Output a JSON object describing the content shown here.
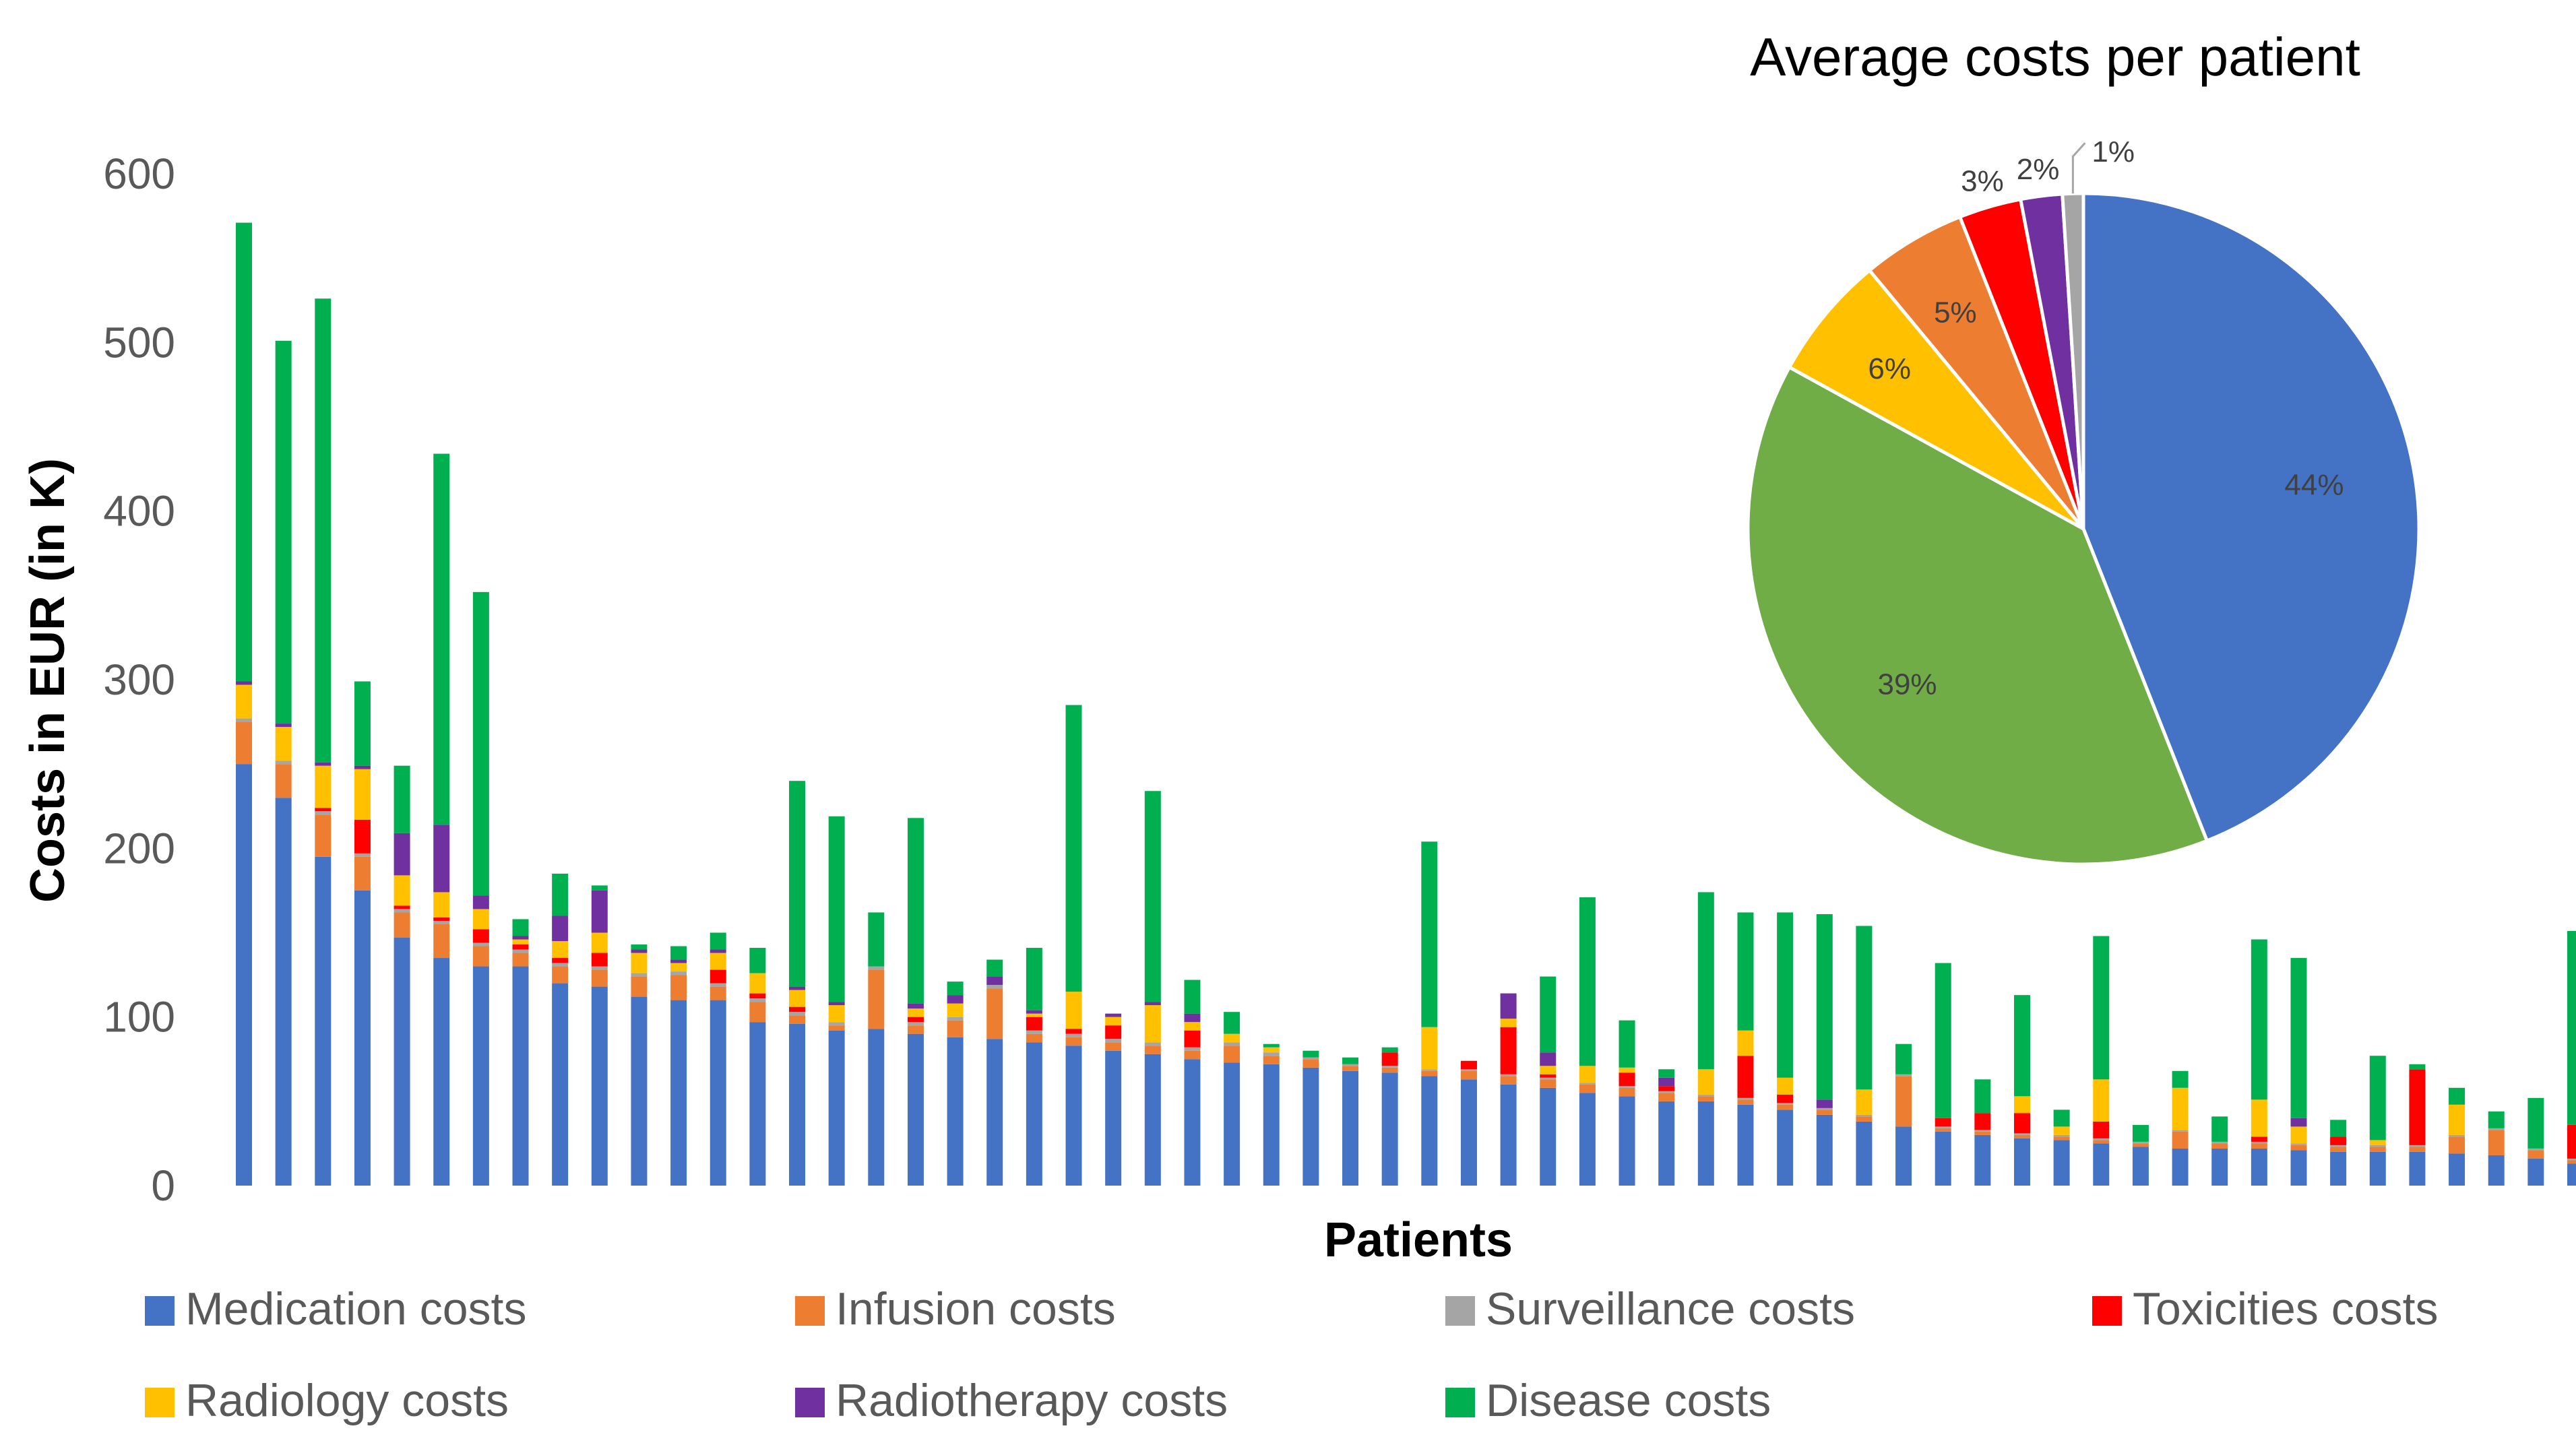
{
  "chart_data": [
    {
      "type": "bar",
      "stacked": true,
      "ylabel": "Costs in EUR (in K)",
      "xlabel": "Patients",
      "ylim": [
        0,
        600
      ],
      "yticks": [
        0,
        100,
        200,
        300,
        400,
        500,
        600
      ],
      "grid": false,
      "legend": "bottom",
      "series": [
        {
          "name": "Medication costs",
          "color": "#4472C4",
          "values": [
            250,
            230,
            195,
            175,
            147,
            135,
            130,
            130,
            120,
            118,
            112,
            110,
            110,
            97,
            96,
            92,
            93,
            90,
            88,
            87,
            85,
            83,
            80,
            78,
            75,
            73,
            72,
            70,
            68,
            67,
            65,
            63,
            60,
            58,
            55,
            53,
            50,
            50,
            48,
            45,
            42,
            38,
            35,
            32,
            30,
            28,
            27,
            25,
            23,
            22,
            22,
            22,
            21,
            20,
            20,
            20,
            19,
            18,
            16,
            13
          ]
        },
        {
          "name": "Infusion costs",
          "color": "#ED7D31",
          "values": [
            25,
            20,
            25,
            20,
            15,
            20,
            12,
            8,
            10,
            10,
            12,
            15,
            8,
            12,
            5,
            3,
            35,
            5,
            10,
            30,
            5,
            5,
            5,
            5,
            5,
            10,
            5,
            5,
            3,
            3,
            3,
            5,
            5,
            5,
            5,
            5,
            5,
            3,
            3,
            3,
            3,
            3,
            30,
            2,
            2,
            2,
            2,
            2,
            2,
            10,
            3,
            3,
            3,
            3,
            3,
            3,
            10,
            15,
            5,
            2
          ]
        },
        {
          "name": "Surveillance costs",
          "color": "#A5A5A5",
          "values": [
            2,
            2,
            2,
            2,
            2,
            2,
            2,
            2,
            2,
            2,
            2,
            2,
            2,
            2,
            2,
            2,
            2,
            2,
            2,
            2,
            2,
            2,
            2,
            2,
            2,
            2,
            2,
            1,
            1,
            1,
            1,
            1,
            1,
            1,
            1,
            1,
            1,
            1,
            1,
            1,
            1,
            1,
            1,
            1,
            1,
            1,
            1,
            1,
            1,
            1,
            1,
            1,
            1,
            1,
            1,
            1,
            1,
            1,
            1,
            1
          ]
        },
        {
          "name": "Toxicities costs",
          "color": "#FF0000",
          "values": [
            0,
            0,
            2,
            20,
            2,
            2,
            8,
            3,
            3,
            8,
            0,
            0,
            8,
            3,
            3,
            0,
            0,
            3,
            0,
            0,
            8,
            3,
            8,
            0,
            10,
            0,
            0,
            0,
            0,
            8,
            0,
            5,
            28,
            2,
            0,
            8,
            3,
            0,
            25,
            5,
            0,
            0,
            0,
            5,
            10,
            12,
            0,
            10,
            0,
            0,
            0,
            3,
            0,
            5,
            0,
            45,
            0,
            0,
            0,
            20
          ]
        },
        {
          "name": "Radiology costs",
          "color": "#FFC000",
          "values": [
            20,
            20,
            25,
            30,
            18,
            15,
            12,
            3,
            10,
            12,
            12,
            5,
            10,
            12,
            10,
            10,
            0,
            5,
            8,
            0,
            2,
            22,
            5,
            22,
            5,
            5,
            3,
            0,
            0,
            0,
            25,
            0,
            5,
            5,
            10,
            3,
            0,
            15,
            15,
            10,
            0,
            15,
            0,
            0,
            0,
            10,
            5,
            25,
            0,
            25,
            0,
            22,
            10,
            0,
            3,
            0,
            18,
            0,
            0,
            0
          ]
        },
        {
          "name": "Radiotherapy costs",
          "color": "#7030A0",
          "values": [
            2,
            2,
            2,
            2,
            25,
            40,
            8,
            2,
            15,
            25,
            2,
            2,
            2,
            0,
            2,
            2,
            0,
            3,
            5,
            5,
            2,
            0,
            2,
            2,
            5,
            0,
            0,
            0,
            0,
            0,
            0,
            0,
            15,
            8,
            0,
            0,
            5,
            0,
            0,
            0,
            5,
            0,
            0,
            0,
            0,
            0,
            0,
            0,
            0,
            0,
            0,
            0,
            5,
            0,
            0,
            0,
            0,
            0,
            0,
            0
          ]
        },
        {
          "name": "Disease costs",
          "color": "#00B050",
          "values": [
            272,
            227,
            275,
            50,
            40,
            220,
            180,
            10,
            25,
            3,
            3,
            8,
            10,
            15,
            122,
            110,
            32,
            110,
            8,
            10,
            37,
            170,
            0,
            125,
            20,
            13,
            2,
            4,
            4,
            3,
            110,
            0,
            0,
            45,
            100,
            28,
            5,
            105,
            70,
            98,
            110,
            97,
            18,
            92,
            20,
            60,
            10,
            85,
            10,
            10,
            15,
            95,
            95,
            10,
            50,
            3,
            10,
            10,
            30,
            115
          ]
        }
      ]
    },
    {
      "type": "pie",
      "title": "Average costs per patient",
      "slices": [
        {
          "name": "Medication costs",
          "value": 44,
          "label": "44%",
          "color": "#4472C4"
        },
        {
          "name": "Disease costs",
          "value": 39,
          "label": "39%",
          "color": "#70AD47"
        },
        {
          "name": "Radiology costs",
          "value": 6,
          "label": "6%",
          "color": "#FFC000"
        },
        {
          "name": "Infusion costs",
          "value": 5,
          "label": "5%",
          "color": "#ED7D31"
        },
        {
          "name": "Toxicities costs",
          "value": 3,
          "label": "3%",
          "color": "#FF0000"
        },
        {
          "name": "Radiotherapy costs",
          "value": 2,
          "label": "2%",
          "color": "#7030A0"
        },
        {
          "name": "Surveillance costs",
          "value": 1,
          "label": "1%",
          "color": "#A5A5A5"
        }
      ]
    }
  ]
}
